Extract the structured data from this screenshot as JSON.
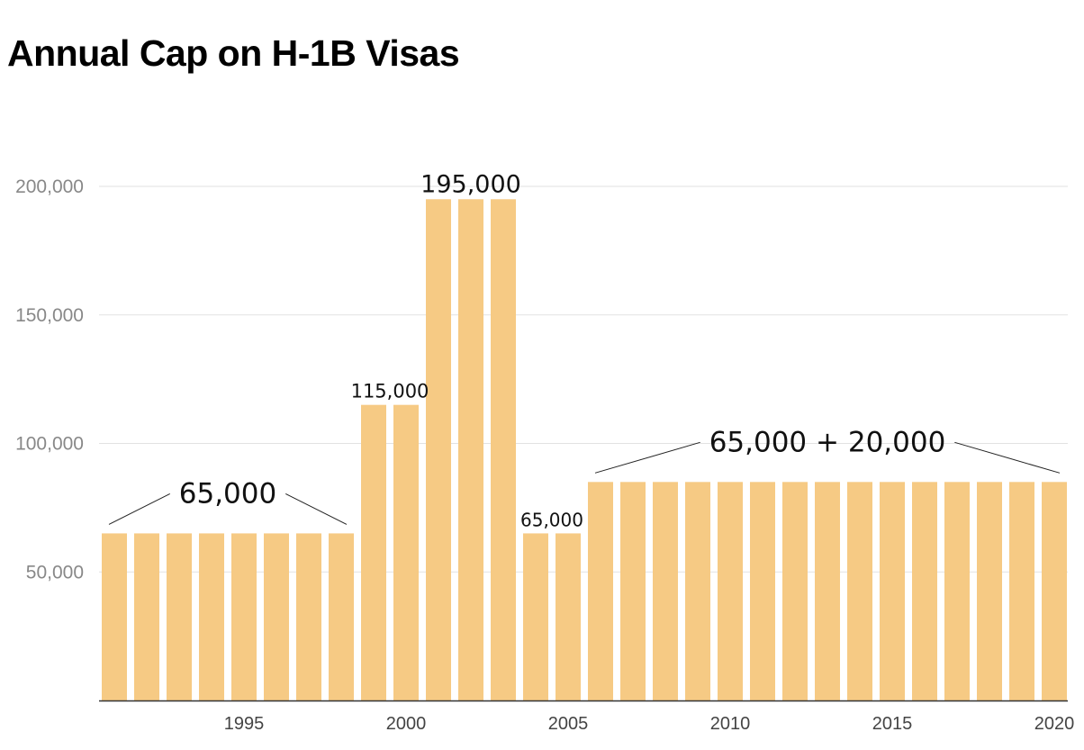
{
  "chart_data": {
    "type": "bar",
    "title": "Annual Cap on H-1B Visas",
    "xlabel": "",
    "ylabel": "",
    "ylim": [
      0,
      200000
    ],
    "grid": true,
    "legend": "none",
    "bar_color": "#F6CA84",
    "y_ticks": [
      "50,000",
      "100,000",
      "150,000",
      "200,000"
    ],
    "y_tick_values": [
      50000,
      100000,
      150000,
      200000
    ],
    "x_ticks": [
      "1995",
      "2000",
      "2005",
      "2010",
      "2015",
      "2020"
    ],
    "x_tick_values": [
      1995,
      2000,
      2005,
      2010,
      2015,
      2020
    ],
    "categories": [
      1991,
      1992,
      1993,
      1994,
      1995,
      1996,
      1997,
      1998,
      1999,
      2000,
      2001,
      2002,
      2003,
      2004,
      2005,
      2006,
      2007,
      2008,
      2009,
      2010,
      2011,
      2012,
      2013,
      2014,
      2015,
      2016,
      2017,
      2018,
      2019,
      2020
    ],
    "values": [
      65000,
      65000,
      65000,
      65000,
      65000,
      65000,
      65000,
      65000,
      115000,
      115000,
      195000,
      195000,
      195000,
      65000,
      65000,
      85000,
      85000,
      85000,
      85000,
      85000,
      85000,
      85000,
      85000,
      85000,
      85000,
      85000,
      85000,
      85000,
      85000,
      85000
    ],
    "annotations": [
      {
        "text": "65,000",
        "from": 1991,
        "to": 1998,
        "value": 65000,
        "bracket": true
      },
      {
        "text": "115,000",
        "from": 1999,
        "to": 2000,
        "value": 115000,
        "bracket": false
      },
      {
        "text": "195,000",
        "from": 2001,
        "to": 2003,
        "value": 195000,
        "bracket": false
      },
      {
        "text": "65,000",
        "from": 2004,
        "to": 2005,
        "value": 65000,
        "bracket": false
      },
      {
        "text": "65,000 + 20,000",
        "from": 2006,
        "to": 2020,
        "value": 85000,
        "bracket": true
      }
    ]
  }
}
